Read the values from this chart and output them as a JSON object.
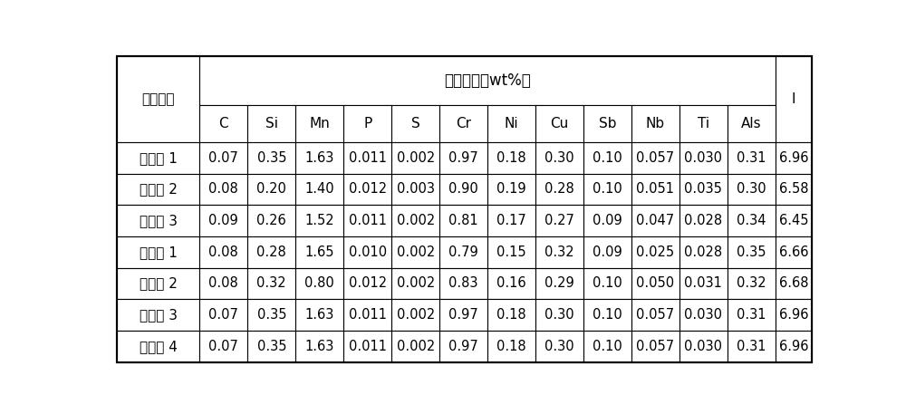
{
  "title_merged": "化学成分（wt%）",
  "col_header_row1": "控制类型",
  "col_headers": [
    "C",
    "Si",
    "Mn",
    "P",
    "S",
    "Cr",
    "Ni",
    "Cu",
    "Sb",
    "Nb",
    "Ti",
    "Als"
  ],
  "last_col": "I",
  "rows": [
    [
      "实施例 1",
      "0.07",
      "0.35",
      "1.63",
      "0.011",
      "0.002",
      "0.97",
      "0.18",
      "0.30",
      "0.10",
      "0.057",
      "0.030",
      "0.31",
      "6.96"
    ],
    [
      "实施例 2",
      "0.08",
      "0.20",
      "1.40",
      "0.012",
      "0.003",
      "0.90",
      "0.19",
      "0.28",
      "0.10",
      "0.051",
      "0.035",
      "0.30",
      "6.58"
    ],
    [
      "实施例 3",
      "0.09",
      "0.26",
      "1.52",
      "0.011",
      "0.002",
      "0.81",
      "0.17",
      "0.27",
      "0.09",
      "0.047",
      "0.028",
      "0.34",
      "6.45"
    ],
    [
      "对比例 1",
      "0.08",
      "0.28",
      "1.65",
      "0.010",
      "0.002",
      "0.79",
      "0.15",
      "0.32",
      "0.09",
      "0.025",
      "0.028",
      "0.35",
      "6.66"
    ],
    [
      "对比例 2",
      "0.08",
      "0.32",
      "0.80",
      "0.012",
      "0.002",
      "0.83",
      "0.16",
      "0.29",
      "0.10",
      "0.050",
      "0.031",
      "0.32",
      "6.68"
    ],
    [
      "对比例 3",
      "0.07",
      "0.35",
      "1.63",
      "0.011",
      "0.002",
      "0.97",
      "0.18",
      "0.30",
      "0.10",
      "0.057",
      "0.030",
      "0.31",
      "6.96"
    ],
    [
      "对比例 4",
      "0.07",
      "0.35",
      "1.63",
      "0.011",
      "0.002",
      "0.97",
      "0.18",
      "0.30",
      "0.10",
      "0.057",
      "0.030",
      "0.31",
      "6.96"
    ]
  ],
  "background_color": "#ffffff",
  "border_color": "#000000",
  "text_color": "#000000",
  "fontsize": 11,
  "header_fontsize": 12,
  "figsize": [
    10.0,
    4.57
  ],
  "dpi": 100
}
